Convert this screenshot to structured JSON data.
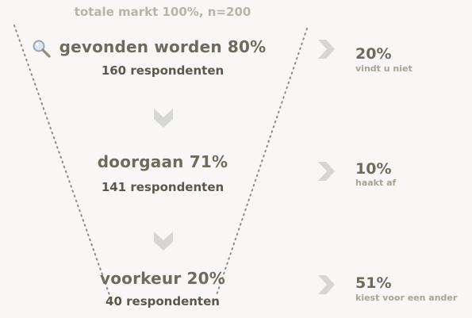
{
  "total": {
    "label": "totale markt 100%, n=200"
  },
  "stages": [
    {
      "title": "gevonden worden 80%",
      "sub": "160 respondenten"
    },
    {
      "title": "doorgaan 71%",
      "sub": "141 respondenten"
    },
    {
      "title": "voorkeur 20%",
      "sub": "40 respondenten"
    }
  ],
  "drops": [
    {
      "pct": "20%",
      "label": "vindt u niet"
    },
    {
      "pct": "10%",
      "label": "haakt af"
    },
    {
      "pct": "51%",
      "label": "kiest voor een ander"
    }
  ],
  "icons": {
    "search": "search-icon",
    "chevron_down": "chevron-down-icon",
    "chevron_right": "chevron-right-icon"
  },
  "colors": {
    "background": "#f8f7f5",
    "title_text": "#6e6a5d",
    "sub_text": "#5a574c",
    "muted_text": "#b8b4aa",
    "chevron": "#d6d6d2",
    "dotted_line": "#8a8a8a"
  }
}
